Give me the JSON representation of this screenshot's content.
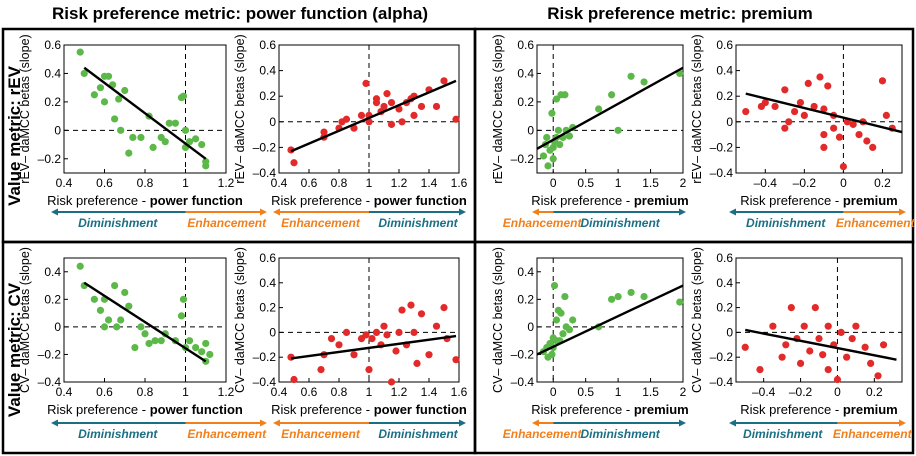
{
  "figure": {
    "column_headers": [
      "Risk preference metric: power function (alpha)",
      "Risk preference metric: premium"
    ],
    "row_headers": [
      "Value metric: rEV",
      "Value metric: CV"
    ],
    "xlabel_prefix": "Risk preference - ",
    "labels": {
      "diminishment": "Diminishment",
      "enhancement": "Enhancement"
    }
  },
  "colors": {
    "green": "#5db84a",
    "red": "#e32a2a",
    "dim": "#1b6f85",
    "enh": "#f07f1c",
    "black": "#000000"
  },
  "chart_data": [
    {
      "type": "scatter",
      "id": "p1",
      "color": "green",
      "ylabel": "rEV– daMCC betas (slope)",
      "xlabel_bold": "power function",
      "xlim": [
        0.4,
        1.2
      ],
      "ylim": [
        -0.3,
        0.6
      ],
      "xticks": [
        0.4,
        0.6,
        0.8,
        1,
        1.2
      ],
      "xtick_labels": [
        "0.4",
        "0.6",
        "0.8",
        "1",
        "1.2"
      ],
      "yticks": [
        -0.2,
        0,
        0.2,
        0.4,
        0.6
      ],
      "ytick_labels": [
        "–0.2",
        "0",
        "0.2",
        "0.4",
        "0.6"
      ],
      "vref": 1,
      "fit": [
        [
          0.5,
          0.44
        ],
        [
          1.1,
          -0.2
        ]
      ],
      "arrows": {
        "split": 1,
        "left": "diminishment",
        "right": "enhancement"
      },
      "points": [
        [
          0.48,
          0.55
        ],
        [
          0.5,
          0.4
        ],
        [
          0.55,
          0.25
        ],
        [
          0.58,
          0.3
        ],
        [
          0.6,
          0.38
        ],
        [
          0.62,
          0.38
        ],
        [
          0.6,
          0.2
        ],
        [
          0.64,
          0.32
        ],
        [
          0.65,
          0.08
        ],
        [
          0.67,
          0.22
        ],
        [
          0.68,
          0.0
        ],
        [
          0.7,
          0.28
        ],
        [
          0.72,
          -0.16
        ],
        [
          0.74,
          -0.05
        ],
        [
          0.78,
          -0.05
        ],
        [
          0.82,
          0.1
        ],
        [
          0.84,
          -0.12
        ],
        [
          0.88,
          -0.05
        ],
        [
          0.9,
          -0.08
        ],
        [
          0.92,
          0.05
        ],
        [
          0.95,
          0.05
        ],
        [
          0.98,
          0.23
        ],
        [
          0.99,
          0.24
        ],
        [
          1.0,
          0.0
        ],
        [
          1.0,
          -0.12
        ],
        [
          1.02,
          -0.08
        ],
        [
          1.05,
          -0.06
        ],
        [
          1.08,
          -0.1
        ],
        [
          1.1,
          -0.22
        ],
        [
          1.1,
          -0.25
        ]
      ]
    },
    {
      "type": "scatter",
      "id": "p2",
      "color": "red",
      "ylabel": "rEV– daMCC betas (slope)",
      "xlabel_bold": "power function",
      "xlim": [
        0.4,
        1.6
      ],
      "ylim": [
        -0.4,
        0.6
      ],
      "xticks": [
        0.4,
        0.6,
        0.8,
        1,
        1.2,
        1.4,
        1.6
      ],
      "xtick_labels": [
        "0.4",
        "0.6",
        "0.8",
        "1",
        "1.2",
        "1.4",
        "1.6"
      ],
      "yticks": [
        -0.4,
        -0.2,
        0,
        0.2,
        0.4,
        0.6
      ],
      "ytick_labels": [
        "–0.4",
        "–0.2",
        "0",
        "0.2",
        "0.4",
        "0.6"
      ],
      "vref": 1,
      "fit": [
        [
          0.48,
          -0.23
        ],
        [
          1.58,
          0.32
        ]
      ],
      "arrows": {
        "split": 1,
        "left": "enhancement",
        "right": "diminishment"
      },
      "points": [
        [
          0.48,
          -0.22
        ],
        [
          0.5,
          -0.32
        ],
        [
          0.7,
          -0.12
        ],
        [
          0.7,
          -0.08
        ],
        [
          0.8,
          -0.05
        ],
        [
          0.82,
          0.0
        ],
        [
          0.85,
          0.02
        ],
        [
          0.9,
          -0.05
        ],
        [
          0.95,
          0.05
        ],
        [
          0.98,
          0.3
        ],
        [
          1.0,
          0.0
        ],
        [
          1.0,
          0.05
        ],
        [
          1.05,
          0.15
        ],
        [
          1.05,
          0.18
        ],
        [
          1.08,
          0.08
        ],
        [
          1.1,
          0.12
        ],
        [
          1.12,
          0.22
        ],
        [
          1.15,
          0.15
        ],
        [
          1.15,
          -0.02
        ],
        [
          1.2,
          0.1
        ],
        [
          1.22,
          0.0
        ],
        [
          1.25,
          0.15
        ],
        [
          1.28,
          0.18
        ],
        [
          1.3,
          0.05
        ],
        [
          1.3,
          0.2
        ],
        [
          1.35,
          0.12
        ],
        [
          1.4,
          0.25
        ],
        [
          1.45,
          0.12
        ],
        [
          1.5,
          0.32
        ],
        [
          1.58,
          0.02
        ]
      ]
    },
    {
      "type": "scatter",
      "id": "p3",
      "color": "green",
      "ylabel": "rEV– daMCC betas (slope)",
      "xlabel_bold": "premium",
      "xlim": [
        -0.25,
        2
      ],
      "ylim": [
        -0.3,
        0.6
      ],
      "xticks": [
        0,
        0.5,
        1,
        1.5,
        2
      ],
      "xtick_labels": [
        "0",
        "0.5",
        "1",
        "1.5",
        "2"
      ],
      "yticks": [
        -0.2,
        0,
        0.2,
        0.4,
        0.6
      ],
      "ytick_labels": [
        "–0.2",
        "0",
        "0.2",
        "0.4",
        "0.6"
      ],
      "vref": 0,
      "fit": [
        [
          -0.25,
          -0.13
        ],
        [
          2.0,
          0.44
        ]
      ],
      "arrows": {
        "split": 0,
        "left": "enhancement",
        "right": "diminishment"
      },
      "points": [
        [
          -0.15,
          -0.18
        ],
        [
          -0.12,
          -0.1
        ],
        [
          -0.1,
          -0.05
        ],
        [
          -0.08,
          -0.25
        ],
        [
          -0.05,
          -0.14
        ],
        [
          -0.02,
          0.12
        ],
        [
          0.0,
          -0.12
        ],
        [
          0.0,
          -0.2
        ],
        [
          0.02,
          -0.08
        ],
        [
          0.05,
          0.22
        ],
        [
          0.05,
          -0.05
        ],
        [
          0.08,
          0.0
        ],
        [
          0.1,
          -0.1
        ],
        [
          0.12,
          0.25
        ],
        [
          0.15,
          -0.05
        ],
        [
          0.18,
          0.25
        ],
        [
          0.2,
          0.0
        ],
        [
          0.25,
          -0.04
        ],
        [
          0.3,
          0.02
        ],
        [
          0.7,
          0.15
        ],
        [
          0.9,
          0.25
        ],
        [
          1.0,
          0.0
        ],
        [
          1.2,
          0.38
        ],
        [
          1.4,
          0.34
        ],
        [
          1.95,
          0.4
        ]
      ]
    },
    {
      "type": "scatter",
      "id": "p4",
      "color": "red",
      "ylabel": "rEV– daMCC betas (slope)",
      "xlabel_bold": "premium",
      "xlim": [
        -0.55,
        0.3
      ],
      "ylim": [
        -0.4,
        0.6
      ],
      "xticks": [
        -0.4,
        -0.2,
        0,
        0.2
      ],
      "xtick_labels": [
        "–0.4",
        "–0.2",
        "0",
        "0.2"
      ],
      "yticks": [
        -0.4,
        -0.2,
        0,
        0.2,
        0.4,
        0.6
      ],
      "ytick_labels": [
        "–0.4",
        "–0.2",
        "0",
        "0.2",
        "0.4",
        "0.6"
      ],
      "vref": 0,
      "fit": [
        [
          -0.5,
          0.22
        ],
        [
          0.3,
          -0.08
        ]
      ],
      "arrows": {
        "split": 0,
        "left": "diminishment",
        "right": "enhancement"
      },
      "points": [
        [
          -0.5,
          0.08
        ],
        [
          -0.42,
          0.12
        ],
        [
          -0.4,
          0.15
        ],
        [
          -0.35,
          0.12
        ],
        [
          -0.3,
          0.25
        ],
        [
          -0.3,
          -0.05
        ],
        [
          -0.28,
          0.0
        ],
        [
          -0.25,
          0.08
        ],
        [
          -0.22,
          0.15
        ],
        [
          -0.2,
          0.05
        ],
        [
          -0.18,
          0.3
        ],
        [
          -0.15,
          0.12
        ],
        [
          -0.12,
          0.35
        ],
        [
          -0.1,
          0.1
        ],
        [
          -0.1,
          -0.1
        ],
        [
          -0.08,
          0.28
        ],
        [
          -0.05,
          0.05
        ],
        [
          -0.05,
          -0.05
        ],
        [
          -0.02,
          -0.12
        ],
        [
          0.0,
          -0.35
        ],
        [
          -0.1,
          -0.2
        ],
        [
          0.02,
          0.0
        ],
        [
          0.05,
          -0.02
        ],
        [
          0.08,
          -0.1
        ],
        [
          0.1,
          0.0
        ],
        [
          0.12,
          -0.15
        ],
        [
          0.15,
          -0.2
        ],
        [
          0.2,
          0.32
        ],
        [
          0.22,
          0.05
        ],
        [
          0.25,
          -0.05
        ]
      ]
    },
    {
      "type": "scatter",
      "id": "p5",
      "color": "green",
      "ylabel": "CV– daMCC betas (slope)",
      "xlabel_bold": "power function",
      "xlim": [
        0.4,
        1.2
      ],
      "ylim": [
        -0.4,
        0.5
      ],
      "xticks": [
        0.4,
        0.6,
        0.8,
        1,
        1.2
      ],
      "xtick_labels": [
        "0.4",
        "0.6",
        "0.8",
        "1",
        "1.2"
      ],
      "yticks": [
        -0.4,
        -0.2,
        0,
        0.2,
        0.4
      ],
      "ytick_labels": [
        "–0.4",
        "–0.2",
        "0",
        "0.2",
        "0.4"
      ],
      "vref": 1,
      "fit": [
        [
          0.5,
          0.32
        ],
        [
          1.1,
          -0.25
        ]
      ],
      "arrows": {
        "split": 1,
        "left": "diminishment",
        "right": "enhancement"
      },
      "points": [
        [
          0.48,
          0.44
        ],
        [
          0.5,
          0.3
        ],
        [
          0.55,
          0.2
        ],
        [
          0.58,
          0.12
        ],
        [
          0.6,
          0.0
        ],
        [
          0.6,
          0.2
        ],
        [
          0.62,
          0.05
        ],
        [
          0.65,
          0.3
        ],
        [
          0.66,
          0.0
        ],
        [
          0.68,
          0.05
        ],
        [
          0.7,
          0.25
        ],
        [
          0.72,
          0.15
        ],
        [
          0.75,
          -0.15
        ],
        [
          0.78,
          0.0
        ],
        [
          0.8,
          -0.05
        ],
        [
          0.82,
          -0.12
        ],
        [
          0.85,
          -0.1
        ],
        [
          0.88,
          -0.1
        ],
        [
          0.9,
          -0.05
        ],
        [
          0.95,
          -0.1
        ],
        [
          0.98,
          0.08
        ],
        [
          0.99,
          0.2
        ],
        [
          1.0,
          -0.15
        ],
        [
          1.02,
          -0.1
        ],
        [
          1.05,
          -0.15
        ],
        [
          1.08,
          -0.18
        ],
        [
          1.1,
          -0.25
        ],
        [
          1.12,
          -0.2
        ],
        [
          1.1,
          -0.12
        ]
      ]
    },
    {
      "type": "scatter",
      "id": "p6",
      "color": "red",
      "ylabel": "CV– daMCC betas (slope)",
      "xlabel_bold": "power function",
      "xlim": [
        0.4,
        1.6
      ],
      "ylim": [
        -0.4,
        0.6
      ],
      "xticks": [
        0.4,
        0.6,
        0.8,
        1,
        1.2,
        1.4,
        1.6
      ],
      "xtick_labels": [
        "0.4",
        "0.6",
        "0.8",
        "1",
        "1.2",
        "1.4",
        "1.6"
      ],
      "yticks": [
        -0.4,
        -0.2,
        0,
        0.2,
        0.4,
        0.6
      ],
      "ytick_labels": [
        "–0.4",
        "–0.2",
        "0",
        "0.2",
        "0.4",
        "0.6"
      ],
      "vref": 1,
      "fit": [
        [
          0.48,
          -0.21
        ],
        [
          1.58,
          -0.03
        ]
      ],
      "arrows": {
        "split": 1,
        "left": "enhancement",
        "right": "diminishment"
      },
      "points": [
        [
          0.48,
          -0.2
        ],
        [
          0.5,
          -0.38
        ],
        [
          0.68,
          -0.3
        ],
        [
          0.7,
          -0.18
        ],
        [
          0.75,
          -0.05
        ],
        [
          0.8,
          -0.1
        ],
        [
          0.85,
          0.0
        ],
        [
          0.9,
          -0.18
        ],
        [
          0.95,
          -0.05
        ],
        [
          0.98,
          -0.02
        ],
        [
          1.0,
          -0.3
        ],
        [
          1.02,
          -0.05
        ],
        [
          1.05,
          0.0
        ],
        [
          1.08,
          -0.1
        ],
        [
          1.1,
          0.05
        ],
        [
          1.12,
          -0.02
        ],
        [
          1.15,
          -0.4
        ],
        [
          1.18,
          -0.15
        ],
        [
          1.2,
          0.0
        ],
        [
          1.22,
          0.18
        ],
        [
          1.25,
          -0.1
        ],
        [
          1.28,
          0.22
        ],
        [
          1.3,
          0.0
        ],
        [
          1.32,
          -0.25
        ],
        [
          1.35,
          0.15
        ],
        [
          1.4,
          -0.18
        ],
        [
          1.45,
          0.05
        ],
        [
          1.5,
          0.2
        ],
        [
          1.52,
          -0.05
        ],
        [
          1.58,
          -0.22
        ]
      ]
    },
    {
      "type": "scatter",
      "id": "p7",
      "color": "green",
      "ylabel": "CV– daMCC betas (slope)",
      "xlabel_bold": "premium",
      "xlim": [
        -0.25,
        2
      ],
      "ylim": [
        -0.4,
        0.5
      ],
      "xticks": [
        0,
        0.5,
        1,
        1.5,
        2
      ],
      "xtick_labels": [
        "0",
        "0.5",
        "1",
        "1.5",
        "2"
      ],
      "yticks": [
        -0.4,
        -0.2,
        0,
        0.2,
        0.4
      ],
      "ytick_labels": [
        "–0.4",
        "–0.2",
        "0",
        "0.2",
        "0.4"
      ],
      "vref": 0,
      "fit": [
        [
          -0.25,
          -0.2
        ],
        [
          2.0,
          0.3
        ]
      ],
      "arrows": {
        "split": 0,
        "left": "enhancement",
        "right": "diminishment"
      },
      "points": [
        [
          -0.15,
          -0.18
        ],
        [
          -0.1,
          -0.15
        ],
        [
          -0.08,
          -0.22
        ],
        [
          -0.05,
          -0.12
        ],
        [
          -0.02,
          -0.2
        ],
        [
          0.0,
          -0.08
        ],
        [
          0.0,
          -0.15
        ],
        [
          0.02,
          0.3
        ],
        [
          0.05,
          0.05
        ],
        [
          0.05,
          -0.1
        ],
        [
          0.08,
          0.12
        ],
        [
          0.1,
          -0.1
        ],
        [
          0.12,
          0.1
        ],
        [
          0.15,
          -0.05
        ],
        [
          0.18,
          0.22
        ],
        [
          0.2,
          0.0
        ],
        [
          0.25,
          -0.02
        ],
        [
          0.3,
          0.05
        ],
        [
          0.7,
          0.0
        ],
        [
          0.9,
          0.2
        ],
        [
          1.0,
          0.22
        ],
        [
          1.2,
          0.25
        ],
        [
          1.4,
          0.22
        ],
        [
          1.95,
          0.18
        ]
      ]
    },
    {
      "type": "scatter",
      "id": "p8",
      "color": "red",
      "ylabel": "CV– daMCC betas (slope)",
      "xlabel_bold": "premium",
      "xlim": [
        -0.55,
        0.35
      ],
      "ylim": [
        -0.4,
        0.6
      ],
      "xticks": [
        -0.4,
        -0.2,
        0,
        0.2
      ],
      "xtick_labels": [
        "–0.4",
        "–0.2",
        "0",
        "0.2"
      ],
      "yticks": [
        -0.4,
        -0.2,
        0,
        0.2,
        0.4,
        0.6
      ],
      "ytick_labels": [
        "–0.4",
        "–0.2",
        "0",
        "0.2",
        "0.4",
        "0.6"
      ],
      "vref": 0,
      "fit": [
        [
          -0.5,
          0.02
        ],
        [
          0.32,
          -0.22
        ]
      ],
      "arrows": {
        "split": 0,
        "left": "diminishment",
        "right": "enhancement"
      },
      "points": [
        [
          -0.5,
          -0.12
        ],
        [
          -0.42,
          -0.3
        ],
        [
          -0.35,
          0.05
        ],
        [
          -0.3,
          -0.2
        ],
        [
          -0.28,
          -0.1
        ],
        [
          -0.25,
          0.2
        ],
        [
          -0.22,
          -0.05
        ],
        [
          -0.2,
          -0.25
        ],
        [
          -0.18,
          0.05
        ],
        [
          -0.15,
          -0.15
        ],
        [
          -0.12,
          0.2
        ],
        [
          -0.1,
          -0.05
        ],
        [
          -0.08,
          -0.18
        ],
        [
          -0.05,
          0.05
        ],
        [
          -0.05,
          -0.3
        ],
        [
          -0.02,
          -0.1
        ],
        [
          0.0,
          -0.38
        ],
        [
          0.02,
          0.0
        ],
        [
          0.05,
          -0.2
        ],
        [
          0.08,
          -0.05
        ],
        [
          0.1,
          0.05
        ],
        [
          0.15,
          -0.12
        ],
        [
          0.18,
          -0.25
        ],
        [
          0.22,
          -0.35
        ],
        [
          0.25,
          -0.1
        ]
      ]
    }
  ]
}
